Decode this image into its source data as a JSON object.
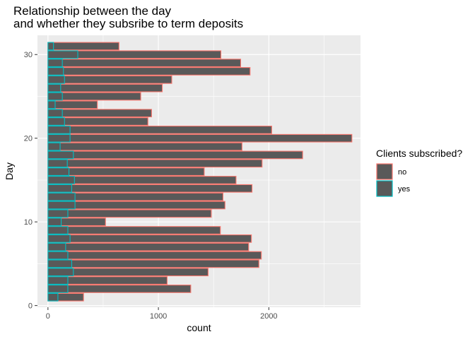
{
  "chart_data": {
    "type": "bar",
    "orientation": "horizontal",
    "title": [
      "Relationship between the day",
      "and whether they subsribe to term deposits"
    ],
    "xlabel": "count",
    "ylabel": "Day",
    "xlim": [
      -95,
      2830
    ],
    "ylim": [
      -0.2,
      32.3
    ],
    "xticks": [
      0,
      1000,
      2000
    ],
    "yticks": [
      0,
      10,
      20,
      30
    ],
    "legend": {
      "title": "Clients subscribed?",
      "position": "right",
      "entries": [
        "no",
        "yes"
      ]
    },
    "colors": {
      "panel": "#ebebeb",
      "grid_major": "#ffffff",
      "bar_fill": "#595959",
      "no_outline": "#f8766d",
      "yes_outline": "#00bfc4"
    },
    "days": [
      1,
      2,
      3,
      4,
      5,
      6,
      7,
      8,
      9,
      10,
      11,
      12,
      13,
      14,
      15,
      16,
      17,
      18,
      19,
      20,
      21,
      22,
      23,
      24,
      25,
      26,
      27,
      28,
      29,
      30,
      31
    ],
    "series": [
      {
        "name": "no",
        "values": [
          322,
          1293,
          1079,
          1450,
          1910,
          1932,
          1817,
          1842,
          1561,
          521,
          1479,
          1603,
          1585,
          1848,
          1703,
          1415,
          1939,
          2306,
          1757,
          2752,
          2026,
          905,
          938,
          447,
          840,
          1035,
          1121,
          1830,
          1745,
          1566,
          643
        ]
      },
      {
        "name": "yes",
        "values": [
          90,
          180,
          180,
          230,
          215,
          180,
          160,
          200,
          180,
          120,
          180,
          245,
          245,
          215,
          240,
          190,
          175,
          230,
          110,
          200,
          200,
          150,
          130,
          65,
          130,
          115,
          150,
          140,
          130,
          270,
          50
        ]
      }
    ]
  }
}
